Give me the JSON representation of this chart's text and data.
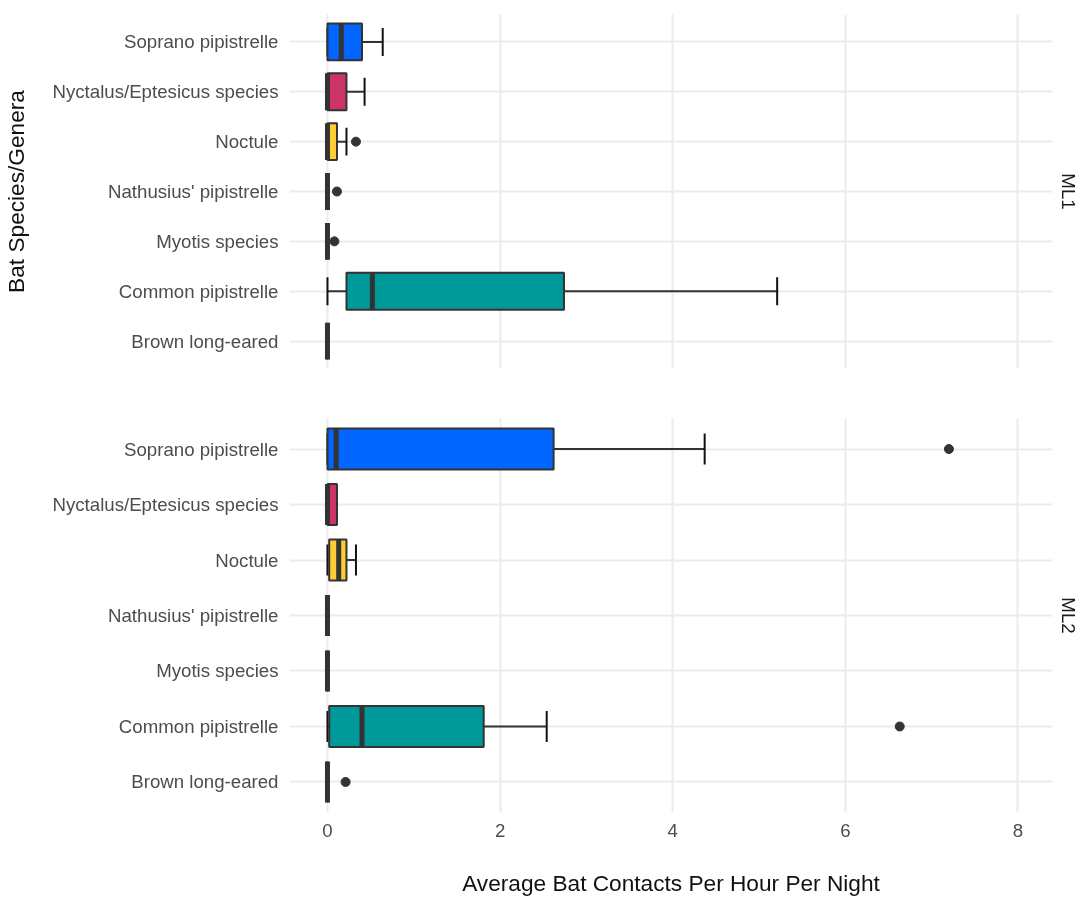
{
  "chart_data": [
    {
      "type": "box",
      "title": "ML1",
      "ylabel": "Bat Species/Genera",
      "orientation": "horizontal",
      "categories": [
        "Soprano pipistrelle",
        "Nyctalus/Eptesicus species",
        "Noctule",
        "Nathusius' pipistrelle",
        "Myotis species",
        "Common pipistrelle",
        "Brown long-eared"
      ],
      "colors": [
        "#0066ff",
        "#cc3366",
        "#ffcc33",
        null,
        null,
        "#009999",
        null
      ],
      "xlim": [
        -0.44,
        8.4
      ],
      "xticks": [
        0,
        2,
        4,
        6,
        8
      ],
      "grid": true,
      "tick_labels": "y",
      "boxes": [
        {
          "low": 0,
          "q1": 0,
          "median": 0.16,
          "q3": 0.4,
          "high": 0.64
        },
        {
          "low": 0,
          "q1": 0,
          "median": 0,
          "q3": 0.22,
          "high": 0.43
        },
        {
          "low": 0,
          "q1": 0,
          "median": 0,
          "q3": 0.11,
          "high": 0.22,
          "outliers": [
            0.33
          ]
        },
        {
          "low": 0,
          "q1": 0,
          "median": 0,
          "q3": 0,
          "high": 0,
          "outliers": [
            0.11
          ]
        },
        {
          "low": 0,
          "q1": 0,
          "median": 0,
          "q3": 0,
          "high": 0,
          "outliers": [
            0.08
          ]
        },
        {
          "low": 0,
          "q1": 0.22,
          "median": 0.52,
          "q3": 2.74,
          "high": 5.21
        },
        {
          "low": 0,
          "q1": 0,
          "median": 0,
          "q3": 0,
          "high": 0
        }
      ]
    },
    {
      "type": "box",
      "title": "ML2",
      "xlabel": "Average Bat Contacts Per Hour Per Night",
      "orientation": "horizontal",
      "categories": [
        "Soprano pipistrelle",
        "Nyctalus/Eptesicus species",
        "Noctule",
        "Nathusius' pipistrelle",
        "Myotis species",
        "Common pipistrelle",
        "Brown long-eared"
      ],
      "colors": [
        "#0066ff",
        "#cc3366",
        "#ffcc33",
        null,
        null,
        "#009999",
        null
      ],
      "xlim": [
        -0.44,
        8.4
      ],
      "xticks": [
        0,
        2,
        4,
        6,
        8
      ],
      "grid": true,
      "boxes": [
        {
          "low": 0,
          "q1": 0,
          "median": 0.1,
          "q3": 2.62,
          "high": 4.37,
          "outliers": [
            7.2
          ]
        },
        {
          "low": 0,
          "q1": 0,
          "median": 0,
          "q3": 0.11,
          "high": 0.11
        },
        {
          "low": 0,
          "q1": 0.02,
          "median": 0.13,
          "q3": 0.22,
          "high": 0.33
        },
        {
          "low": 0,
          "q1": 0,
          "median": 0,
          "q3": 0,
          "high": 0
        },
        {
          "low": 0,
          "q1": 0,
          "median": 0,
          "q3": 0,
          "high": 0
        },
        {
          "low": 0,
          "q1": 0.02,
          "median": 0.4,
          "q3": 1.81,
          "high": 2.54,
          "outliers": [
            6.63
          ]
        },
        {
          "low": 0,
          "q1": 0,
          "median": 0,
          "q3": 0,
          "high": 0,
          "outliers": [
            0.21
          ]
        }
      ]
    }
  ]
}
